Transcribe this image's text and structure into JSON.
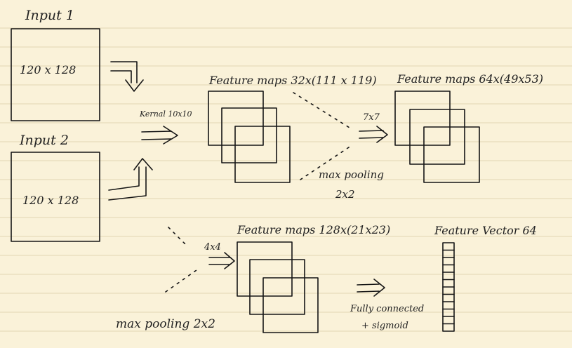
{
  "input_1": {
    "title": "Input 1",
    "size": "120 x 128"
  },
  "input_2": {
    "title": "Input 2",
    "size": "120 x 128"
  },
  "kernel_label": "Kernal 10x10",
  "conv_1": {
    "label": "Feature maps 32x(111 x 119)"
  },
  "conv_2": {
    "label": "Feature maps 64x(49x53)",
    "kernel": "7x7"
  },
  "pool_1": {
    "label": "max pooling",
    "size": "2x2"
  },
  "conv_3": {
    "label": "Feature maps 128x(21x23)",
    "kernel": "4x4"
  },
  "pool_2": {
    "label": "max pooling 2x2"
  },
  "feature_vector": {
    "label": "Feature Vector 64",
    "cells": 12
  },
  "dense": {
    "line1": "Fully connected",
    "line2": "+ sigmoid"
  }
}
